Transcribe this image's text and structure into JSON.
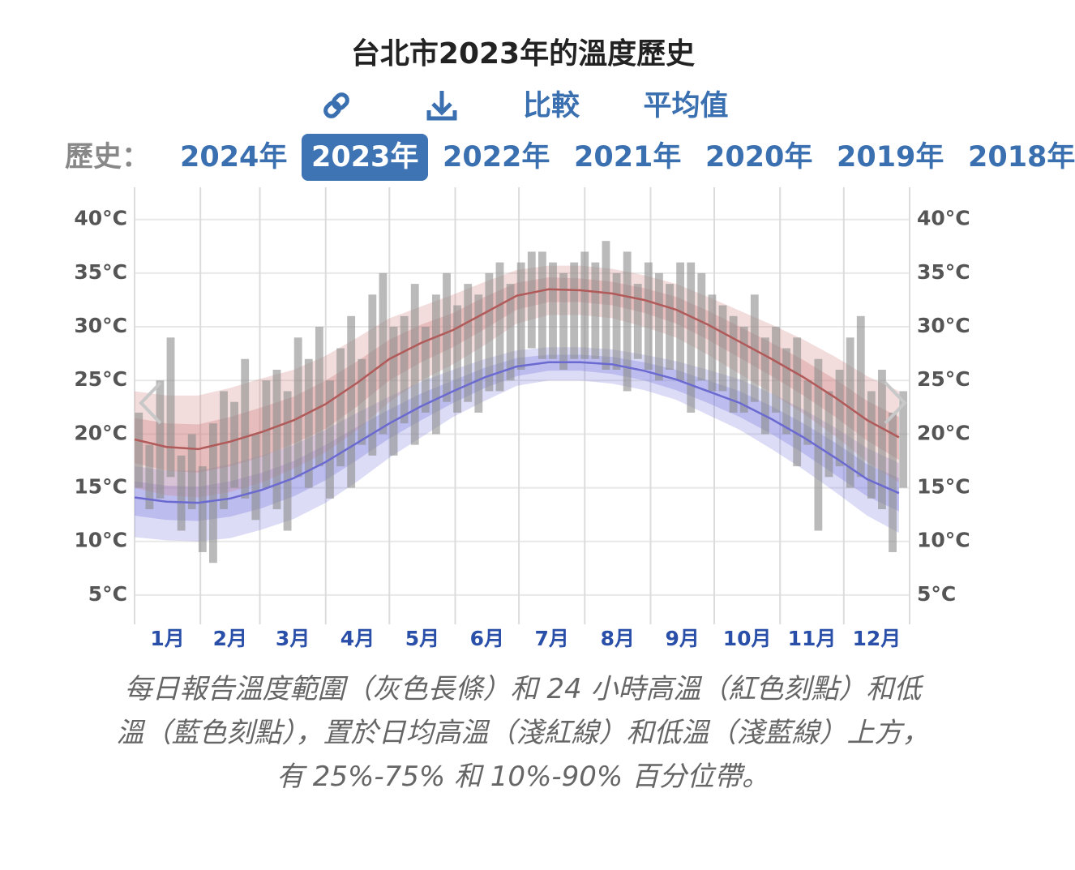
{
  "chart_data": {
    "type": "temperature-range",
    "title": "台北市2023年的溫度歷史",
    "links": [
      "比較",
      "平均值"
    ],
    "history": {
      "label": "歷史：",
      "years": [
        "2024年",
        "2023年",
        "2022年",
        "2021年",
        "2020年",
        "2019年",
        "2018年"
      ],
      "selected": 1
    },
    "categories": [
      "1月",
      "2月",
      "3月",
      "4月",
      "5月",
      "6月",
      "7月",
      "8月",
      "9月",
      "10月",
      "11月",
      "12月"
    ],
    "xticks": [
      0,
      31,
      59,
      90,
      120,
      151,
      181,
      212,
      243,
      273,
      304,
      334,
      365
    ],
    "xlim": [
      0,
      365
    ],
    "ylim": [
      2.5,
      43
    ],
    "yticks": [
      {
        "value": 5,
        "label": "5°C"
      },
      {
        "value": 10,
        "label": "10°C"
      },
      {
        "value": 15,
        "label": "15°C"
      },
      {
        "value": 20,
        "label": "20°C"
      },
      {
        "value": 25,
        "label": "25°C"
      },
      {
        "value": 30,
        "label": "30°C"
      },
      {
        "value": 35,
        "label": "35°C"
      },
      {
        "value": 40,
        "label": "40°C"
      }
    ],
    "grid": true,
    "x": [
      0,
      15,
      30,
      45,
      60,
      75,
      90,
      105,
      120,
      135,
      150,
      165,
      180,
      195,
      210,
      225,
      240,
      255,
      270,
      285,
      300,
      315,
      330,
      345,
      360
    ],
    "high": {
      "color": "#b05a5a",
      "band_color": "#d08080",
      "mean": [
        19.5,
        18.8,
        18.6,
        19.3,
        20.2,
        21.3,
        22.8,
        24.8,
        27.0,
        28.5,
        29.7,
        31.3,
        32.9,
        33.5,
        33.4,
        33.1,
        32.5,
        31.6,
        30.2,
        28.6,
        27.0,
        25.3,
        23.4,
        21.3,
        19.7
      ],
      "p90": [
        24.0,
        23.6,
        23.6,
        24.3,
        25.2,
        26.0,
        27.3,
        29.0,
        30.8,
        31.9,
        33.0,
        34.2,
        35.3,
        35.7,
        35.7,
        35.4,
        34.8,
        34.0,
        32.8,
        31.5,
        30.2,
        28.8,
        27.2,
        25.4,
        24.0
      ],
      "p75": [
        21.5,
        21.0,
        20.9,
        21.6,
        22.5,
        23.5,
        25.0,
        26.8,
        28.8,
        30.2,
        31.3,
        32.8,
        34.1,
        34.6,
        34.5,
        34.2,
        33.6,
        32.8,
        31.5,
        30.0,
        28.5,
        26.9,
        25.1,
        23.1,
        21.6
      ],
      "p25": [
        17.3,
        16.6,
        16.4,
        17.0,
        17.9,
        19.1,
        20.5,
        22.6,
        25.0,
        26.7,
        28.1,
        29.8,
        31.6,
        32.3,
        32.3,
        32.0,
        31.3,
        30.3,
        28.8,
        27.1,
        25.4,
        23.6,
        21.6,
        19.4,
        17.6
      ],
      "p10": [
        15.0,
        14.3,
        14.1,
        14.6,
        15.5,
        16.8,
        18.3,
        20.4,
        23.0,
        25.0,
        26.5,
        28.3,
        30.3,
        31.1,
        31.1,
        30.8,
        30.0,
        29.0,
        27.4,
        25.6,
        23.8,
        21.9,
        19.8,
        17.4,
        15.5
      ]
    },
    "low": {
      "color": "#6a6ad0",
      "band_color": "#8080e0",
      "mean": [
        14.1,
        13.7,
        13.6,
        14.0,
        14.8,
        15.9,
        17.4,
        19.2,
        21.0,
        22.6,
        24.0,
        25.3,
        26.3,
        26.7,
        26.7,
        26.5,
        25.9,
        25.1,
        24.0,
        22.9,
        21.4,
        19.7,
        17.8,
        15.8,
        14.5
      ],
      "p90": [
        17.0,
        16.6,
        16.6,
        17.2,
        18.0,
        19.0,
        20.4,
        22.0,
        23.5,
        24.9,
        26.0,
        27.0,
        27.8,
        28.1,
        28.1,
        27.9,
        27.4,
        26.8,
        26.0,
        25.1,
        23.8,
        22.3,
        20.6,
        18.7,
        17.3
      ],
      "p75": [
        15.6,
        15.2,
        15.1,
        15.6,
        16.4,
        17.5,
        19.0,
        20.7,
        22.3,
        23.8,
        25.0,
        26.2,
        27.1,
        27.4,
        27.4,
        27.2,
        26.7,
        26.0,
        25.0,
        24.0,
        22.6,
        21.0,
        19.2,
        17.2,
        15.9
      ],
      "p25": [
        12.4,
        12.0,
        11.9,
        12.3,
        13.1,
        14.2,
        15.7,
        17.6,
        19.6,
        21.3,
        22.9,
        24.3,
        25.4,
        25.9,
        25.9,
        25.6,
        25.0,
        24.1,
        22.9,
        21.6,
        20.0,
        18.2,
        16.2,
        14.2,
        12.8
      ],
      "p10": [
        10.4,
        10.1,
        10.0,
        10.3,
        11.1,
        12.1,
        13.6,
        15.6,
        17.8,
        19.7,
        21.6,
        23.1,
        24.5,
        25.0,
        25.0,
        24.7,
        24.1,
        23.2,
        21.8,
        20.4,
        18.6,
        16.7,
        14.6,
        12.4,
        10.8
      ]
    },
    "daily": {
      "color": "#8c8c8c",
      "x": [
        2,
        7,
        12,
        17,
        22,
        27,
        32,
        37,
        42,
        47,
        52,
        57,
        62,
        67,
        72,
        77,
        82,
        87,
        92,
        97,
        102,
        107,
        112,
        117,
        122,
        127,
        132,
        137,
        142,
        147,
        152,
        157,
        162,
        167,
        172,
        177,
        182,
        187,
        192,
        197,
        202,
        207,
        212,
        217,
        222,
        227,
        232,
        237,
        242,
        247,
        252,
        257,
        262,
        267,
        272,
        277,
        282,
        287,
        292,
        297,
        302,
        307,
        312,
        317,
        322,
        327,
        332,
        337,
        342,
        347,
        352,
        357,
        362
      ],
      "high": [
        22,
        19,
        25,
        29,
        18,
        20,
        17,
        21,
        24,
        23,
        27,
        20,
        25,
        26,
        24,
        29,
        27,
        30,
        25,
        28,
        31,
        27,
        33,
        35,
        30,
        31,
        34,
        30,
        33,
        35,
        32,
        34,
        33,
        35,
        36,
        34,
        36,
        37,
        37,
        36,
        35,
        36,
        37,
        36,
        38,
        35,
        37,
        34,
        36,
        35,
        34,
        36,
        36,
        35,
        33,
        32,
        31,
        30,
        33,
        29,
        30,
        28,
        29,
        25,
        27,
        24,
        26,
        29,
        31,
        24,
        26,
        22,
        24
      ],
      "low": [
        15,
        13,
        14,
        16,
        11,
        13,
        9,
        8,
        13,
        15,
        14,
        12,
        15,
        13,
        11,
        16,
        15,
        17,
        14,
        17,
        15,
        19,
        18,
        20,
        18,
        21,
        19,
        22,
        20,
        23,
        22,
        23,
        22,
        24,
        24,
        25,
        26,
        28,
        27,
        27,
        26,
        27,
        27,
        27,
        26,
        26,
        24,
        27,
        26,
        25,
        26,
        25,
        22,
        25,
        24,
        24,
        22,
        22,
        23,
        20,
        22,
        20,
        17,
        19,
        11,
        16,
        17,
        15,
        16,
        14,
        13,
        9,
        15
      ]
    },
    "caption": "每日報告溫度範圍（灰色長條）和 24 小時高溫（紅色刻點）和低溫（藍色刻點），置於日均高溫（淺紅線）和低溫（淺藍線）上方，有 25%-75% 和 10%-90% 百分位帶。"
  }
}
